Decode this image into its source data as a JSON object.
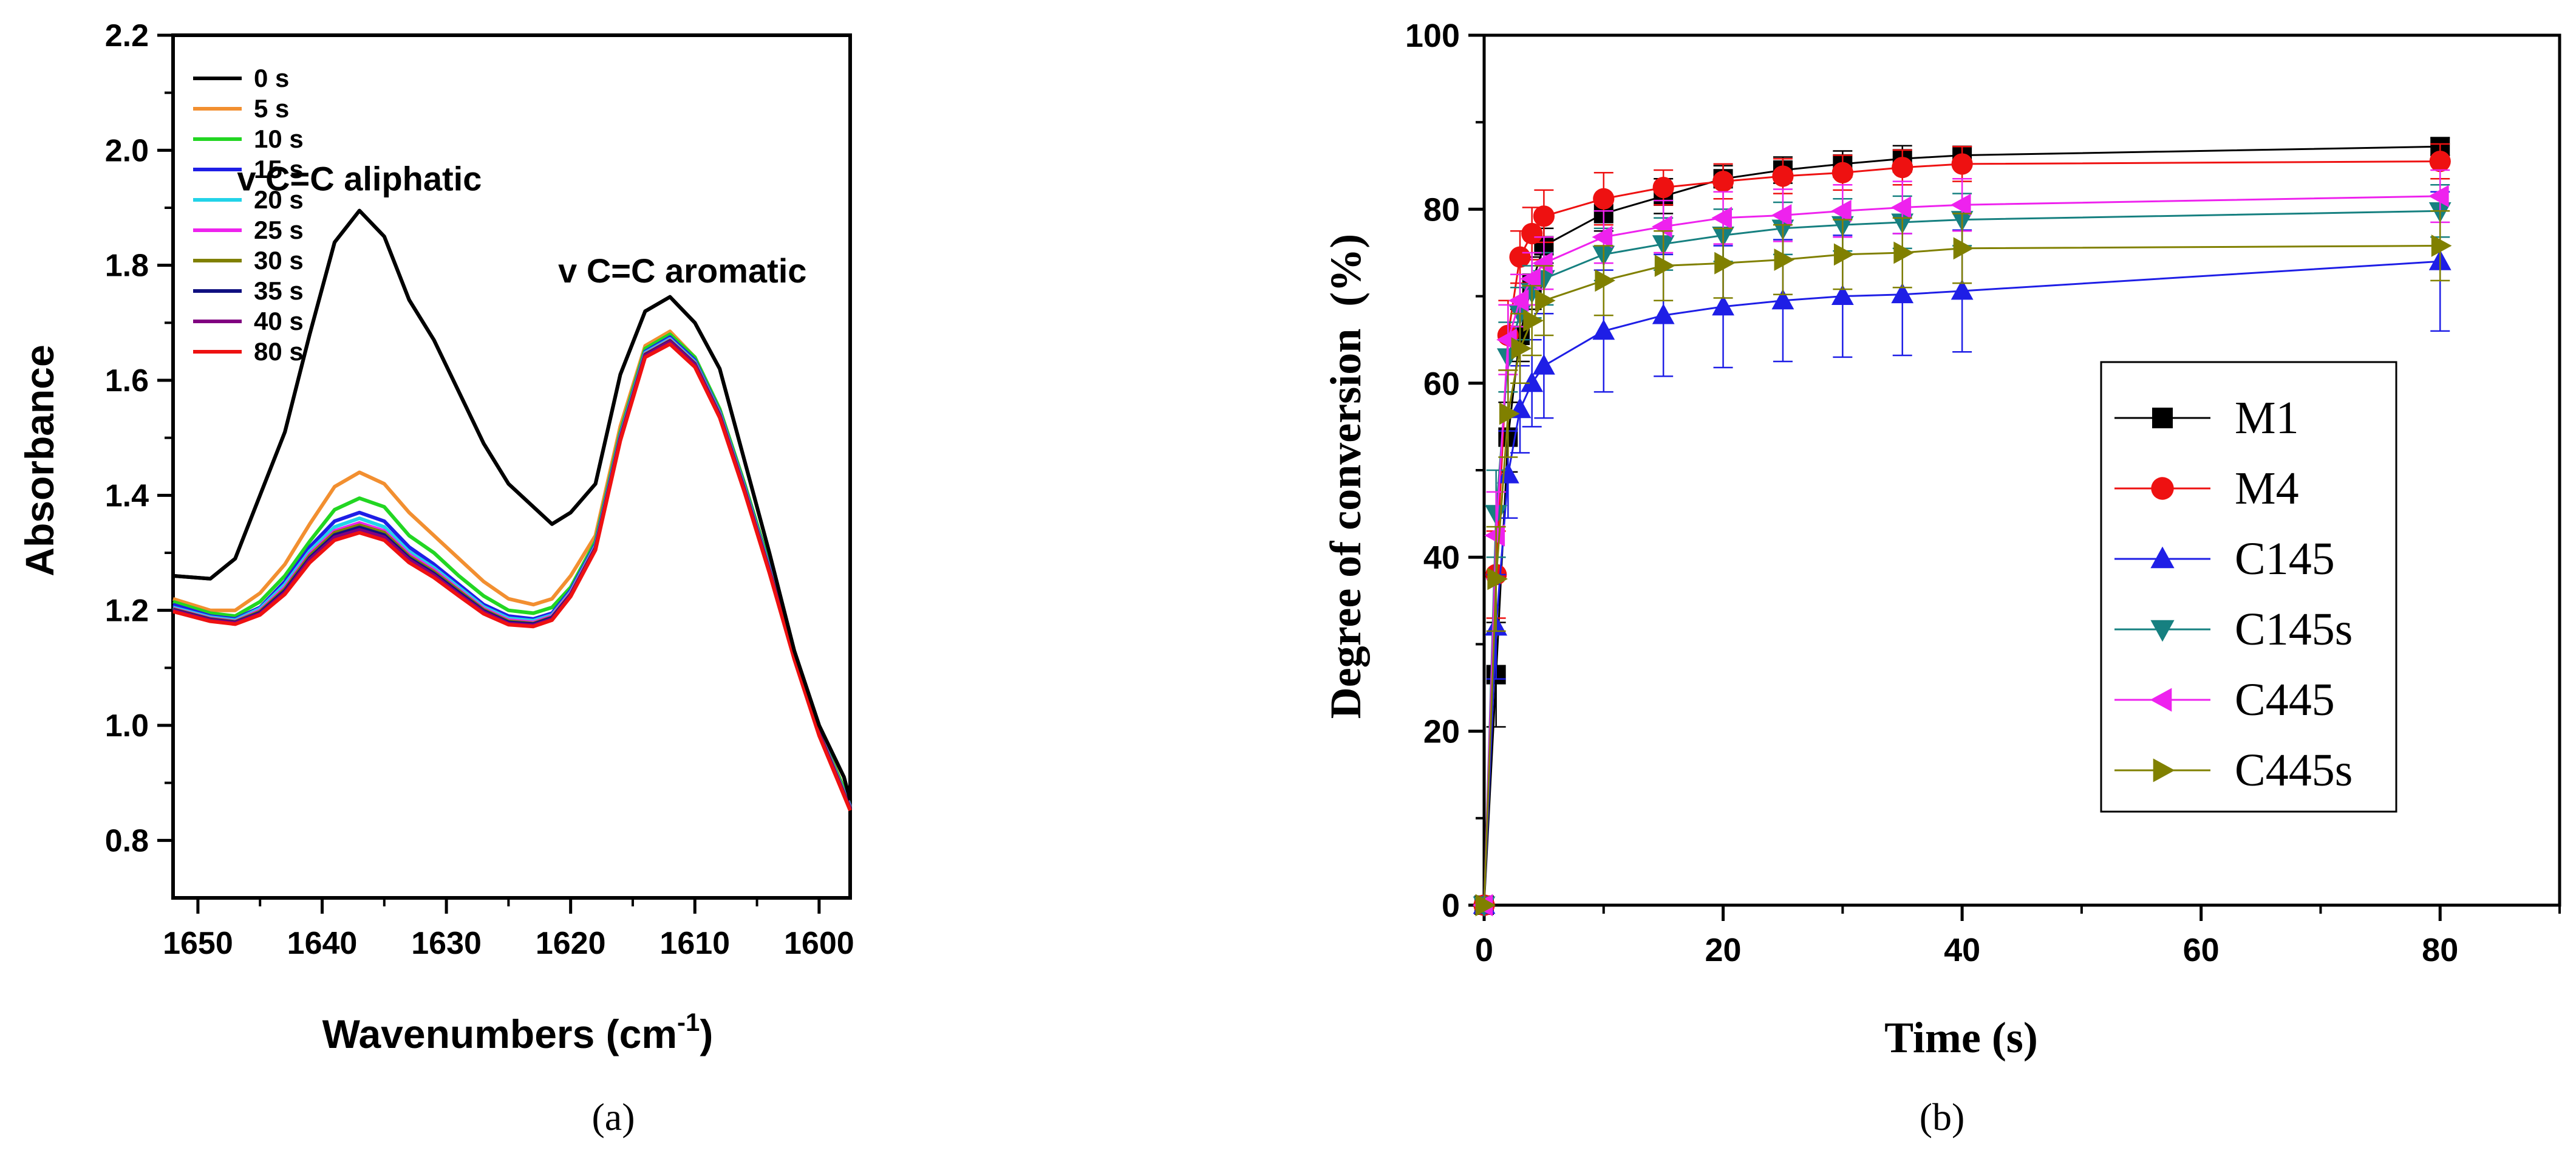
{
  "chart_data": [
    {
      "type": "line",
      "panel_label": "(a)",
      "title": "",
      "xlabel": "Wavenumbers (cm",
      "xlabel_sup": "-1",
      "xlabel_close": ")",
      "ylabel": "Absorbance",
      "xlim": [
        1652,
        1597.5
      ],
      "ylim": [
        0.7,
        2.2
      ],
      "xticks": [
        1650,
        1640,
        1630,
        1620,
        1610,
        1600
      ],
      "yticks": [
        0.8,
        1.0,
        1.2,
        1.4,
        1.6,
        1.8,
        2.0,
        2.2
      ],
      "ytick_labels": [
        "0.8",
        "1.0",
        "1.2",
        "1.4",
        "1.6",
        "1.8",
        "2.0",
        "2.2"
      ],
      "grid": false,
      "legend_position": "top-left",
      "annotations": [
        {
          "text": "v C=C aliphatic",
          "x": 1637,
          "y": 1.93
        },
        {
          "text": "v C=C aromatic",
          "x": 1611,
          "y": 1.77
        }
      ],
      "x": [
        1652,
        1649,
        1647,
        1645,
        1643,
        1641,
        1639,
        1637,
        1635,
        1633,
        1631,
        1629,
        1627,
        1625,
        1623,
        1621.5,
        1620,
        1618,
        1616,
        1614,
        1612,
        1610,
        1608,
        1606,
        1604,
        1602,
        1600,
        1598,
        1597.5
      ],
      "series": [
        {
          "name": "0 s",
          "color": "#000000",
          "values": [
            1.26,
            1.255,
            1.29,
            1.4,
            1.51,
            1.68,
            1.84,
            1.895,
            1.85,
            1.74,
            1.67,
            1.58,
            1.49,
            1.42,
            1.38,
            1.35,
            1.37,
            1.42,
            1.61,
            1.72,
            1.745,
            1.7,
            1.62,
            1.46,
            1.3,
            1.13,
            1.0,
            0.91,
            0.87
          ]
        },
        {
          "name": "5 s",
          "color": "#f28f30",
          "values": [
            1.22,
            1.2,
            1.2,
            1.23,
            1.28,
            1.35,
            1.415,
            1.44,
            1.42,
            1.37,
            1.33,
            1.29,
            1.25,
            1.22,
            1.21,
            1.22,
            1.26,
            1.33,
            1.52,
            1.66,
            1.685,
            1.64,
            1.55,
            1.42,
            1.28,
            1.13,
            0.995,
            0.89,
            0.86
          ]
        },
        {
          "name": "10 s",
          "color": "#22d622",
          "values": [
            1.215,
            1.195,
            1.19,
            1.215,
            1.26,
            1.32,
            1.375,
            1.395,
            1.38,
            1.33,
            1.3,
            1.26,
            1.225,
            1.2,
            1.195,
            1.205,
            1.24,
            1.32,
            1.51,
            1.655,
            1.68,
            1.64,
            1.55,
            1.42,
            1.28,
            1.13,
            0.99,
            0.89,
            0.86
          ]
        },
        {
          "name": "15 s",
          "color": "#1e1ee6",
          "values": [
            1.21,
            1.19,
            1.185,
            1.205,
            1.25,
            1.31,
            1.355,
            1.37,
            1.355,
            1.31,
            1.28,
            1.245,
            1.21,
            1.19,
            1.185,
            1.195,
            1.235,
            1.315,
            1.505,
            1.65,
            1.675,
            1.635,
            1.545,
            1.415,
            1.275,
            1.125,
            0.99,
            0.885,
            0.86
          ]
        },
        {
          "name": "20 s",
          "color": "#22d3e8",
          "values": [
            1.205,
            1.188,
            1.183,
            1.203,
            1.245,
            1.303,
            1.345,
            1.36,
            1.345,
            1.302,
            1.274,
            1.24,
            1.206,
            1.186,
            1.182,
            1.192,
            1.232,
            1.312,
            1.503,
            1.648,
            1.672,
            1.632,
            1.543,
            1.413,
            1.273,
            1.123,
            0.989,
            0.884,
            0.858
          ]
        },
        {
          "name": "25 s",
          "color": "#ee22ee",
          "values": [
            1.203,
            1.186,
            1.181,
            1.2,
            1.24,
            1.298,
            1.338,
            1.352,
            1.338,
            1.297,
            1.27,
            1.236,
            1.203,
            1.183,
            1.179,
            1.19,
            1.23,
            1.31,
            1.501,
            1.646,
            1.67,
            1.63,
            1.541,
            1.411,
            1.271,
            1.121,
            0.988,
            0.883,
            0.857
          ]
        },
        {
          "name": "30 s",
          "color": "#808000",
          "values": [
            1.202,
            1.185,
            1.18,
            1.198,
            1.237,
            1.295,
            1.335,
            1.348,
            1.335,
            1.294,
            1.267,
            1.234,
            1.201,
            1.181,
            1.177,
            1.188,
            1.228,
            1.309,
            1.5,
            1.645,
            1.669,
            1.629,
            1.54,
            1.41,
            1.27,
            1.12,
            0.987,
            0.882,
            0.856
          ]
        },
        {
          "name": "35 s",
          "color": "#101080",
          "values": [
            1.201,
            1.184,
            1.179,
            1.196,
            1.234,
            1.291,
            1.331,
            1.344,
            1.331,
            1.291,
            1.264,
            1.231,
            1.199,
            1.179,
            1.176,
            1.187,
            1.227,
            1.308,
            1.499,
            1.644,
            1.668,
            1.628,
            1.539,
            1.409,
            1.269,
            1.119,
            0.986,
            0.881,
            0.855
          ]
        },
        {
          "name": "40 s",
          "color": "#800080",
          "values": [
            1.2,
            1.183,
            1.178,
            1.194,
            1.231,
            1.288,
            1.327,
            1.34,
            1.327,
            1.288,
            1.261,
            1.228,
            1.197,
            1.177,
            1.174,
            1.185,
            1.226,
            1.307,
            1.498,
            1.643,
            1.667,
            1.627,
            1.538,
            1.408,
            1.268,
            1.118,
            0.985,
            0.88,
            0.854
          ]
        },
        {
          "name": "80 s",
          "color": "#ee1111",
          "values": [
            1.198,
            1.181,
            1.176,
            1.192,
            1.228,
            1.283,
            1.322,
            1.335,
            1.322,
            1.283,
            1.257,
            1.225,
            1.194,
            1.175,
            1.172,
            1.183,
            1.224,
            1.305,
            1.495,
            1.64,
            1.663,
            1.623,
            1.535,
            1.405,
            1.265,
            1.115,
            0.982,
            0.878,
            0.852
          ]
        }
      ]
    },
    {
      "type": "line",
      "panel_label": "(b)",
      "title": "",
      "xlabel": "Time (s)",
      "ylabel": "Degree of conversion  (%)",
      "xlim": [
        0,
        90
      ],
      "ylim": [
        0,
        100
      ],
      "xticks": [
        0,
        20,
        40,
        60,
        80
      ],
      "yticks": [
        0,
        20,
        40,
        60,
        80,
        100
      ],
      "grid": false,
      "legend_position": "center-right",
      "x": [
        0,
        1,
        2,
        3,
        4,
        5,
        10,
        15,
        20,
        25,
        30,
        35,
        40,
        80
      ],
      "series": [
        {
          "name": "M1",
          "color": "#000000",
          "marker": "square",
          "values": [
            0,
            26.5,
            53.8,
            65.5,
            71.5,
            75.8,
            79.5,
            81.5,
            83.5,
            84.5,
            85.2,
            85.8,
            86.2,
            87.2
          ],
          "errors": [
            0,
            6,
            4,
            3,
            3,
            2,
            2,
            2,
            1.5,
            1.5,
            1.5,
            1.5,
            1,
            1
          ]
        },
        {
          "name": "M4",
          "color": "#ee1111",
          "marker": "circle",
          "values": [
            0,
            38,
            65.5,
            74.5,
            77.2,
            79.2,
            81.2,
            82.5,
            83.2,
            83.8,
            84.2,
            84.8,
            85.2,
            85.5
          ],
          "errors": [
            0,
            5,
            4,
            3,
            3,
            3,
            3,
            2,
            2,
            2,
            2,
            2,
            2,
            2
          ]
        },
        {
          "name": "C145",
          "color": "#1e1ee6",
          "marker": "triangle-up",
          "values": [
            0,
            32,
            49.5,
            57,
            60,
            62,
            66,
            67.8,
            68.8,
            69.5,
            70,
            70.2,
            70.6,
            74
          ],
          "errors": [
            0,
            6,
            5,
            5,
            5,
            6,
            7,
            7,
            7,
            7,
            7,
            7,
            7,
            8
          ]
        },
        {
          "name": "C145s",
          "color": "#168080",
          "marker": "triangle-down",
          "values": [
            0,
            45,
            63,
            68,
            70.5,
            72,
            74.8,
            76,
            77,
            77.8,
            78.2,
            78.5,
            78.8,
            79.8
          ],
          "errors": [
            0,
            5,
            4,
            3,
            3,
            3,
            3,
            3,
            3,
            3,
            3,
            3,
            3,
            3
          ]
        },
        {
          "name": "C445",
          "color": "#ee22ee",
          "marker": "triangle-left",
          "values": [
            0,
            42.5,
            65,
            69.5,
            72,
            73.8,
            76.8,
            78,
            79,
            79.3,
            79.8,
            80.2,
            80.5,
            81.5
          ],
          "errors": [
            0,
            5,
            4,
            3,
            3,
            3,
            3,
            3,
            3,
            3,
            3,
            3,
            3,
            3
          ]
        },
        {
          "name": "C445s",
          "color": "#808000",
          "marker": "triangle-right",
          "values": [
            0,
            37.5,
            56.5,
            64,
            67.2,
            69.5,
            71.8,
            73.5,
            73.8,
            74.2,
            74.8,
            75,
            75.5,
            75.8
          ],
          "errors": [
            0,
            6,
            5,
            4,
            4,
            4,
            4,
            4,
            4,
            4,
            4,
            4,
            4,
            4
          ]
        }
      ]
    }
  ]
}
